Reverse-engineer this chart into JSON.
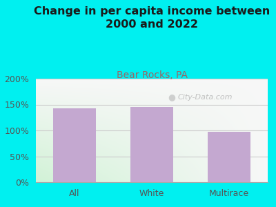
{
  "title": "Change in per capita income between\n2000 and 2022",
  "subtitle": "Bear Rocks, PA",
  "categories": [
    "All",
    "White",
    "Multirace"
  ],
  "values": [
    143,
    146,
    98
  ],
  "bar_color": "#c4a8d0",
  "title_fontsize": 11.5,
  "subtitle_fontsize": 10,
  "subtitle_color": "#996666",
  "title_color": "#1a1a1a",
  "tick_color": "#555555",
  "background_outer": "#00f0f0",
  "ylim": [
    0,
    200
  ],
  "yticks": [
    0,
    50,
    100,
    150,
    200
  ],
  "ytick_labels": [
    "0%",
    "50%",
    "100%",
    "150%",
    "200%"
  ],
  "bar_width": 0.55,
  "watermark": "City-Data.com",
  "grid_color": "#cccccc"
}
